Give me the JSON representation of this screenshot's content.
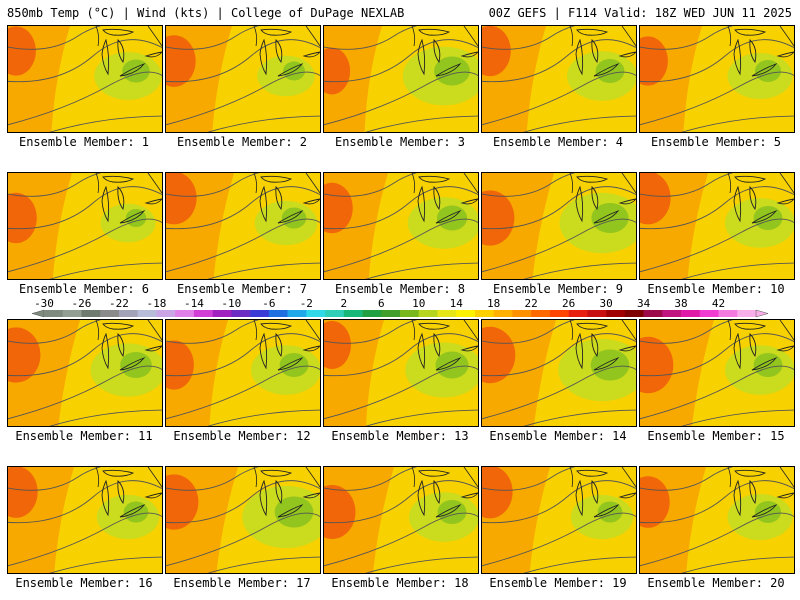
{
  "header": {
    "left": "850mb Temp (°C) | Wind (kts) | College of DuPage NEXLAB",
    "right": "00Z GEFS | F114 Valid: 18Z WED JUN 11 2025"
  },
  "members": [
    {
      "label": "Ensemble Member: 1",
      "hot": 0.55,
      "cool": 0.55
    },
    {
      "label": "Ensemble Member: 2",
      "hot": 0.65,
      "cool": 0.35
    },
    {
      "label": "Ensemble Member: 3",
      "hot": 0.45,
      "cool": 0.85
    },
    {
      "label": "Ensemble Member: 4",
      "hot": 0.6,
      "cool": 0.6
    },
    {
      "label": "Ensemble Member: 5",
      "hot": 0.55,
      "cool": 0.5
    },
    {
      "label": "Ensemble Member: 6",
      "hot": 0.6,
      "cool": 0.3
    },
    {
      "label": "Ensemble Member: 7",
      "hot": 0.7,
      "cool": 0.45
    },
    {
      "label": "Ensemble Member: 8",
      "hot": 0.6,
      "cool": 0.65
    },
    {
      "label": "Ensemble Member: 9",
      "hot": 0.8,
      "cool": 0.9
    },
    {
      "label": "Ensemble Member: 10",
      "hot": 0.7,
      "cool": 0.6
    },
    {
      "label": "Ensemble Member: 11",
      "hot": 0.8,
      "cool": 0.7
    },
    {
      "label": "Ensemble Member: 12",
      "hot": 0.55,
      "cool": 0.6
    },
    {
      "label": "Ensemble Member: 13",
      "hot": 0.5,
      "cool": 0.75
    },
    {
      "label": "Ensemble Member: 14",
      "hot": 0.85,
      "cool": 0.95
    },
    {
      "label": "Ensemble Member: 15",
      "hot": 0.85,
      "cool": 0.6
    },
    {
      "label": "Ensemble Member: 16",
      "hot": 0.65,
      "cool": 0.45
    },
    {
      "label": "Ensemble Member: 17",
      "hot": 0.8,
      "cool": 0.95
    },
    {
      "label": "Ensemble Member: 18",
      "hot": 0.75,
      "cool": 0.6
    },
    {
      "label": "Ensemble Member: 19",
      "hot": 0.7,
      "cool": 0.45
    },
    {
      "label": "Ensemble Member: 20",
      "hot": 0.65,
      "cool": 0.5
    }
  ],
  "colorbar": {
    "ticks": [
      "-30",
      "-26",
      "-22",
      "-18",
      "-14",
      "-10",
      "-6",
      "-2",
      "2",
      "6",
      "10",
      "14",
      "18",
      "22",
      "26",
      "30",
      "34",
      "38",
      "42"
    ],
    "colors": [
      "#7f8b7f",
      "#949f94",
      "#6f7b6f",
      "#8a8a8a",
      "#a3a3b8",
      "#b7bcd9",
      "#c9a5e6",
      "#e07fe8",
      "#d13ed6",
      "#a020c0",
      "#6a2cc2",
      "#3a3ad6",
      "#1f6fe0",
      "#20a8e8",
      "#30d8e8",
      "#30d0b8",
      "#18b878",
      "#20a040",
      "#3f9f2a",
      "#79b81c",
      "#b6d51e",
      "#e6e619",
      "#fff200",
      "#ffd000",
      "#ffb000",
      "#ff9000",
      "#ff6a00",
      "#ff4500",
      "#e82010",
      "#c81010",
      "#a00000",
      "#7f0000",
      "#9c0a4a",
      "#c0147e",
      "#e01aa8",
      "#f03cd0",
      "#f57ae0",
      "#f8aee8"
    ]
  }
}
